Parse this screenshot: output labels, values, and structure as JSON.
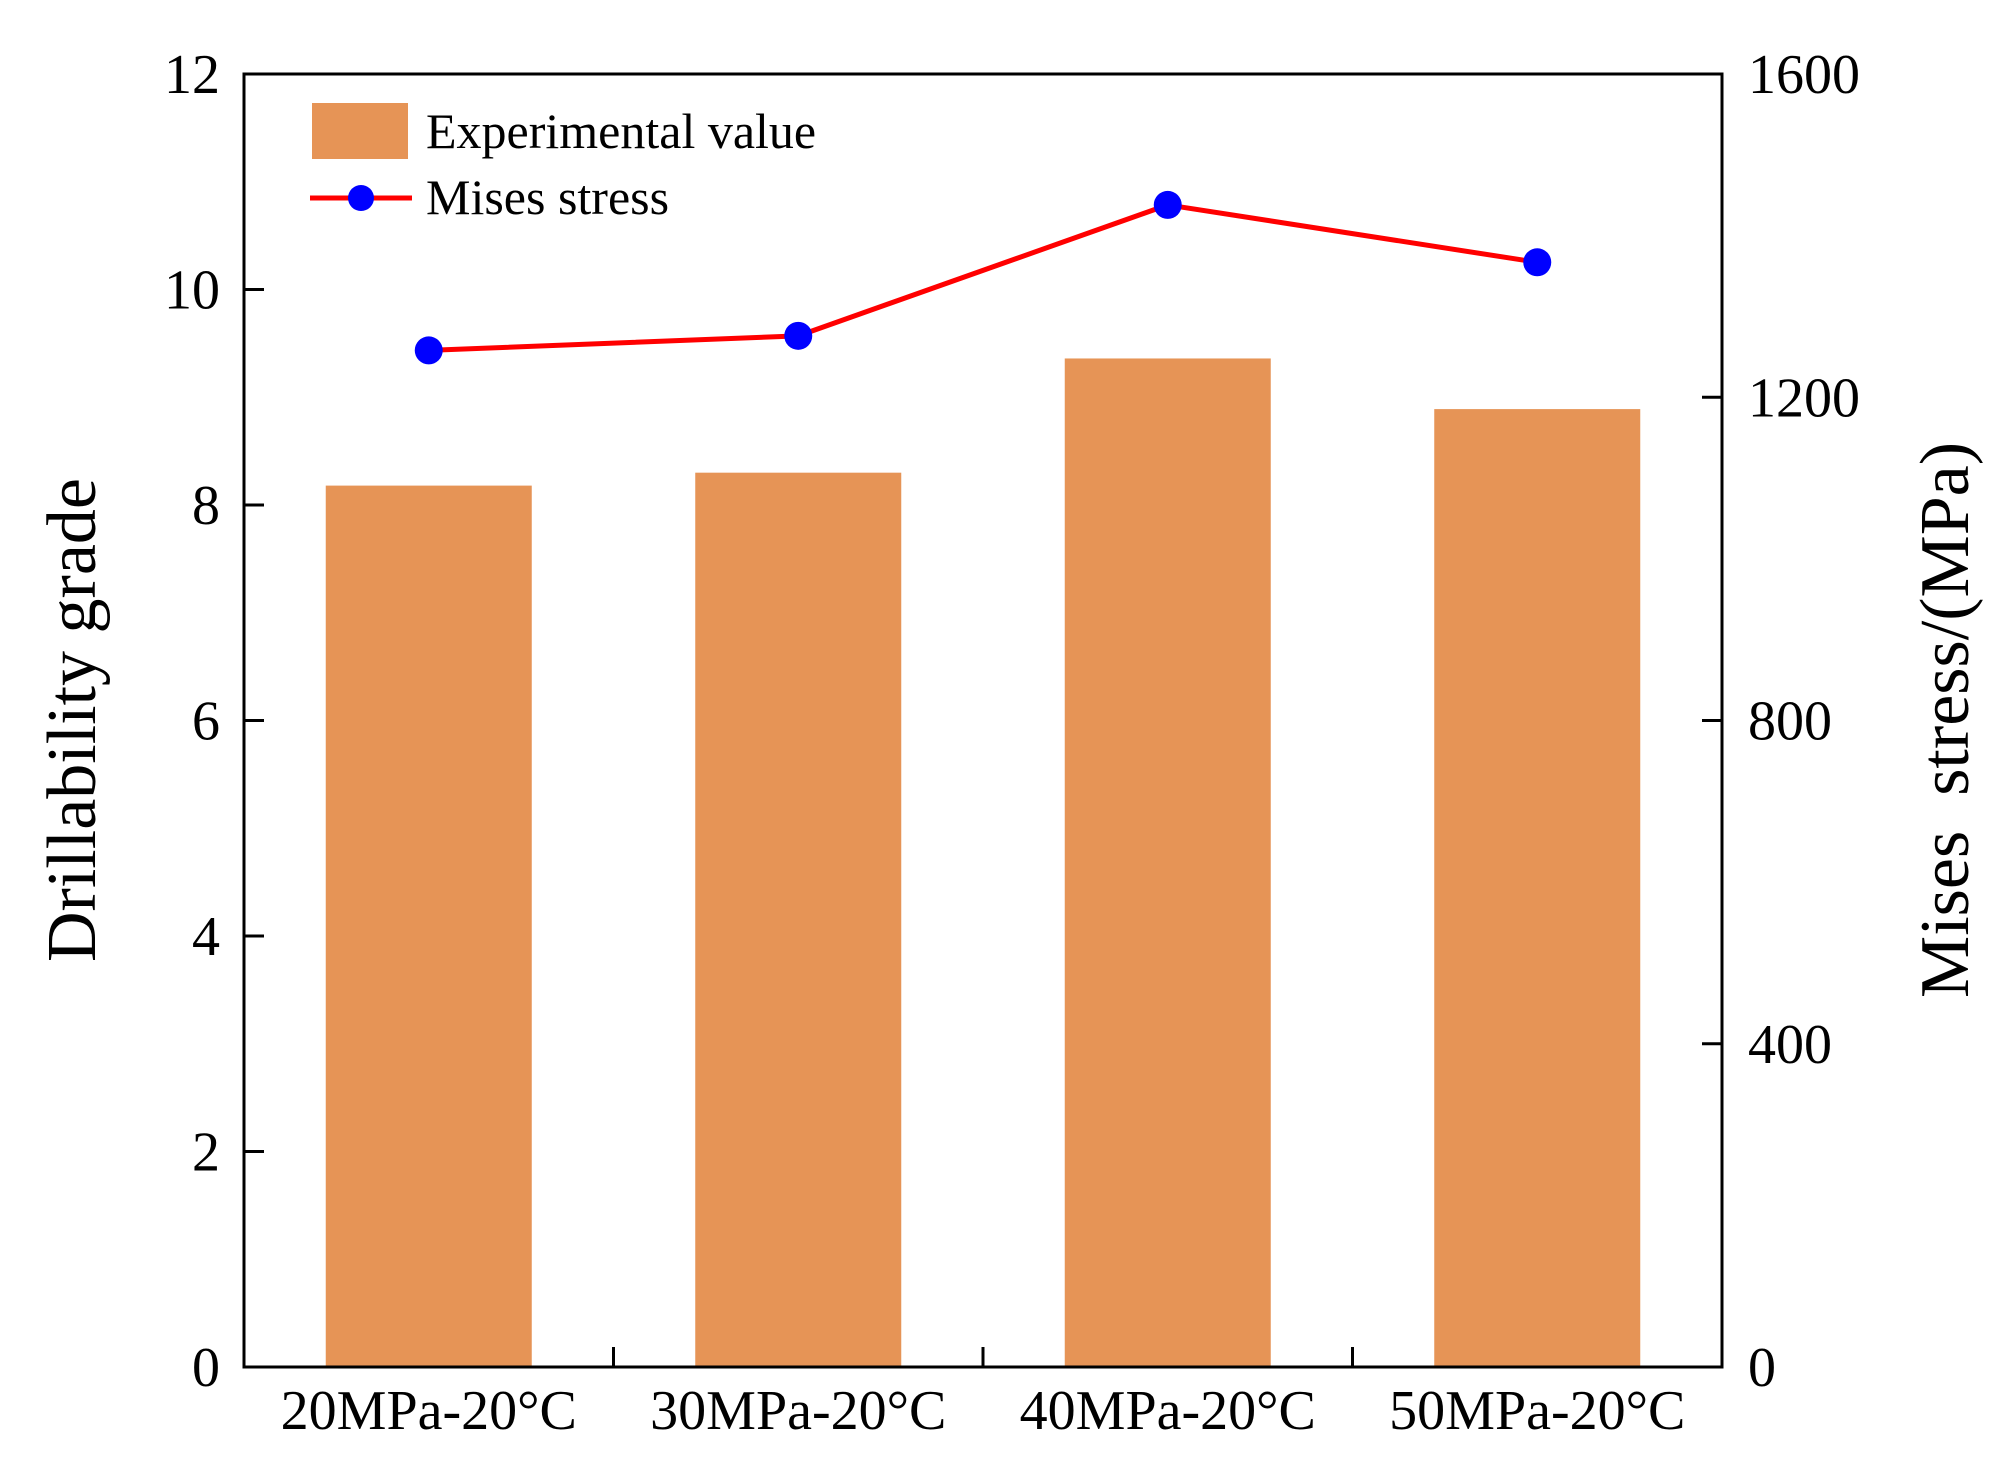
{
  "chart_data": {
    "type": "bar",
    "categories": [
      "20MPa-20°C",
      "30MPa-20°C",
      "40MPa-20°C",
      "50MPa-20°C"
    ],
    "series": [
      {
        "name": "Experimental value",
        "kind": "bar",
        "axis": "left",
        "color": "#E69456",
        "values": [
          8.18,
          8.3,
          9.36,
          8.89
        ]
      },
      {
        "name": "Mises stress",
        "kind": "line",
        "axis": "right",
        "line_color": "#FF0000",
        "marker_color": "#0000FF",
        "values": [
          1258,
          1276,
          1438,
          1367
        ]
      }
    ],
    "ylabel": "Drillability grade",
    "ylim": [
      0,
      12
    ],
    "yticks": [
      0,
      2,
      4,
      6,
      8,
      10,
      12
    ],
    "y2label": "Mises  stress/(MPa)",
    "y2lim": [
      0,
      1600
    ],
    "y2ticks": [
      0,
      400,
      800,
      1200,
      1600
    ],
    "legend_position": "top-left"
  }
}
